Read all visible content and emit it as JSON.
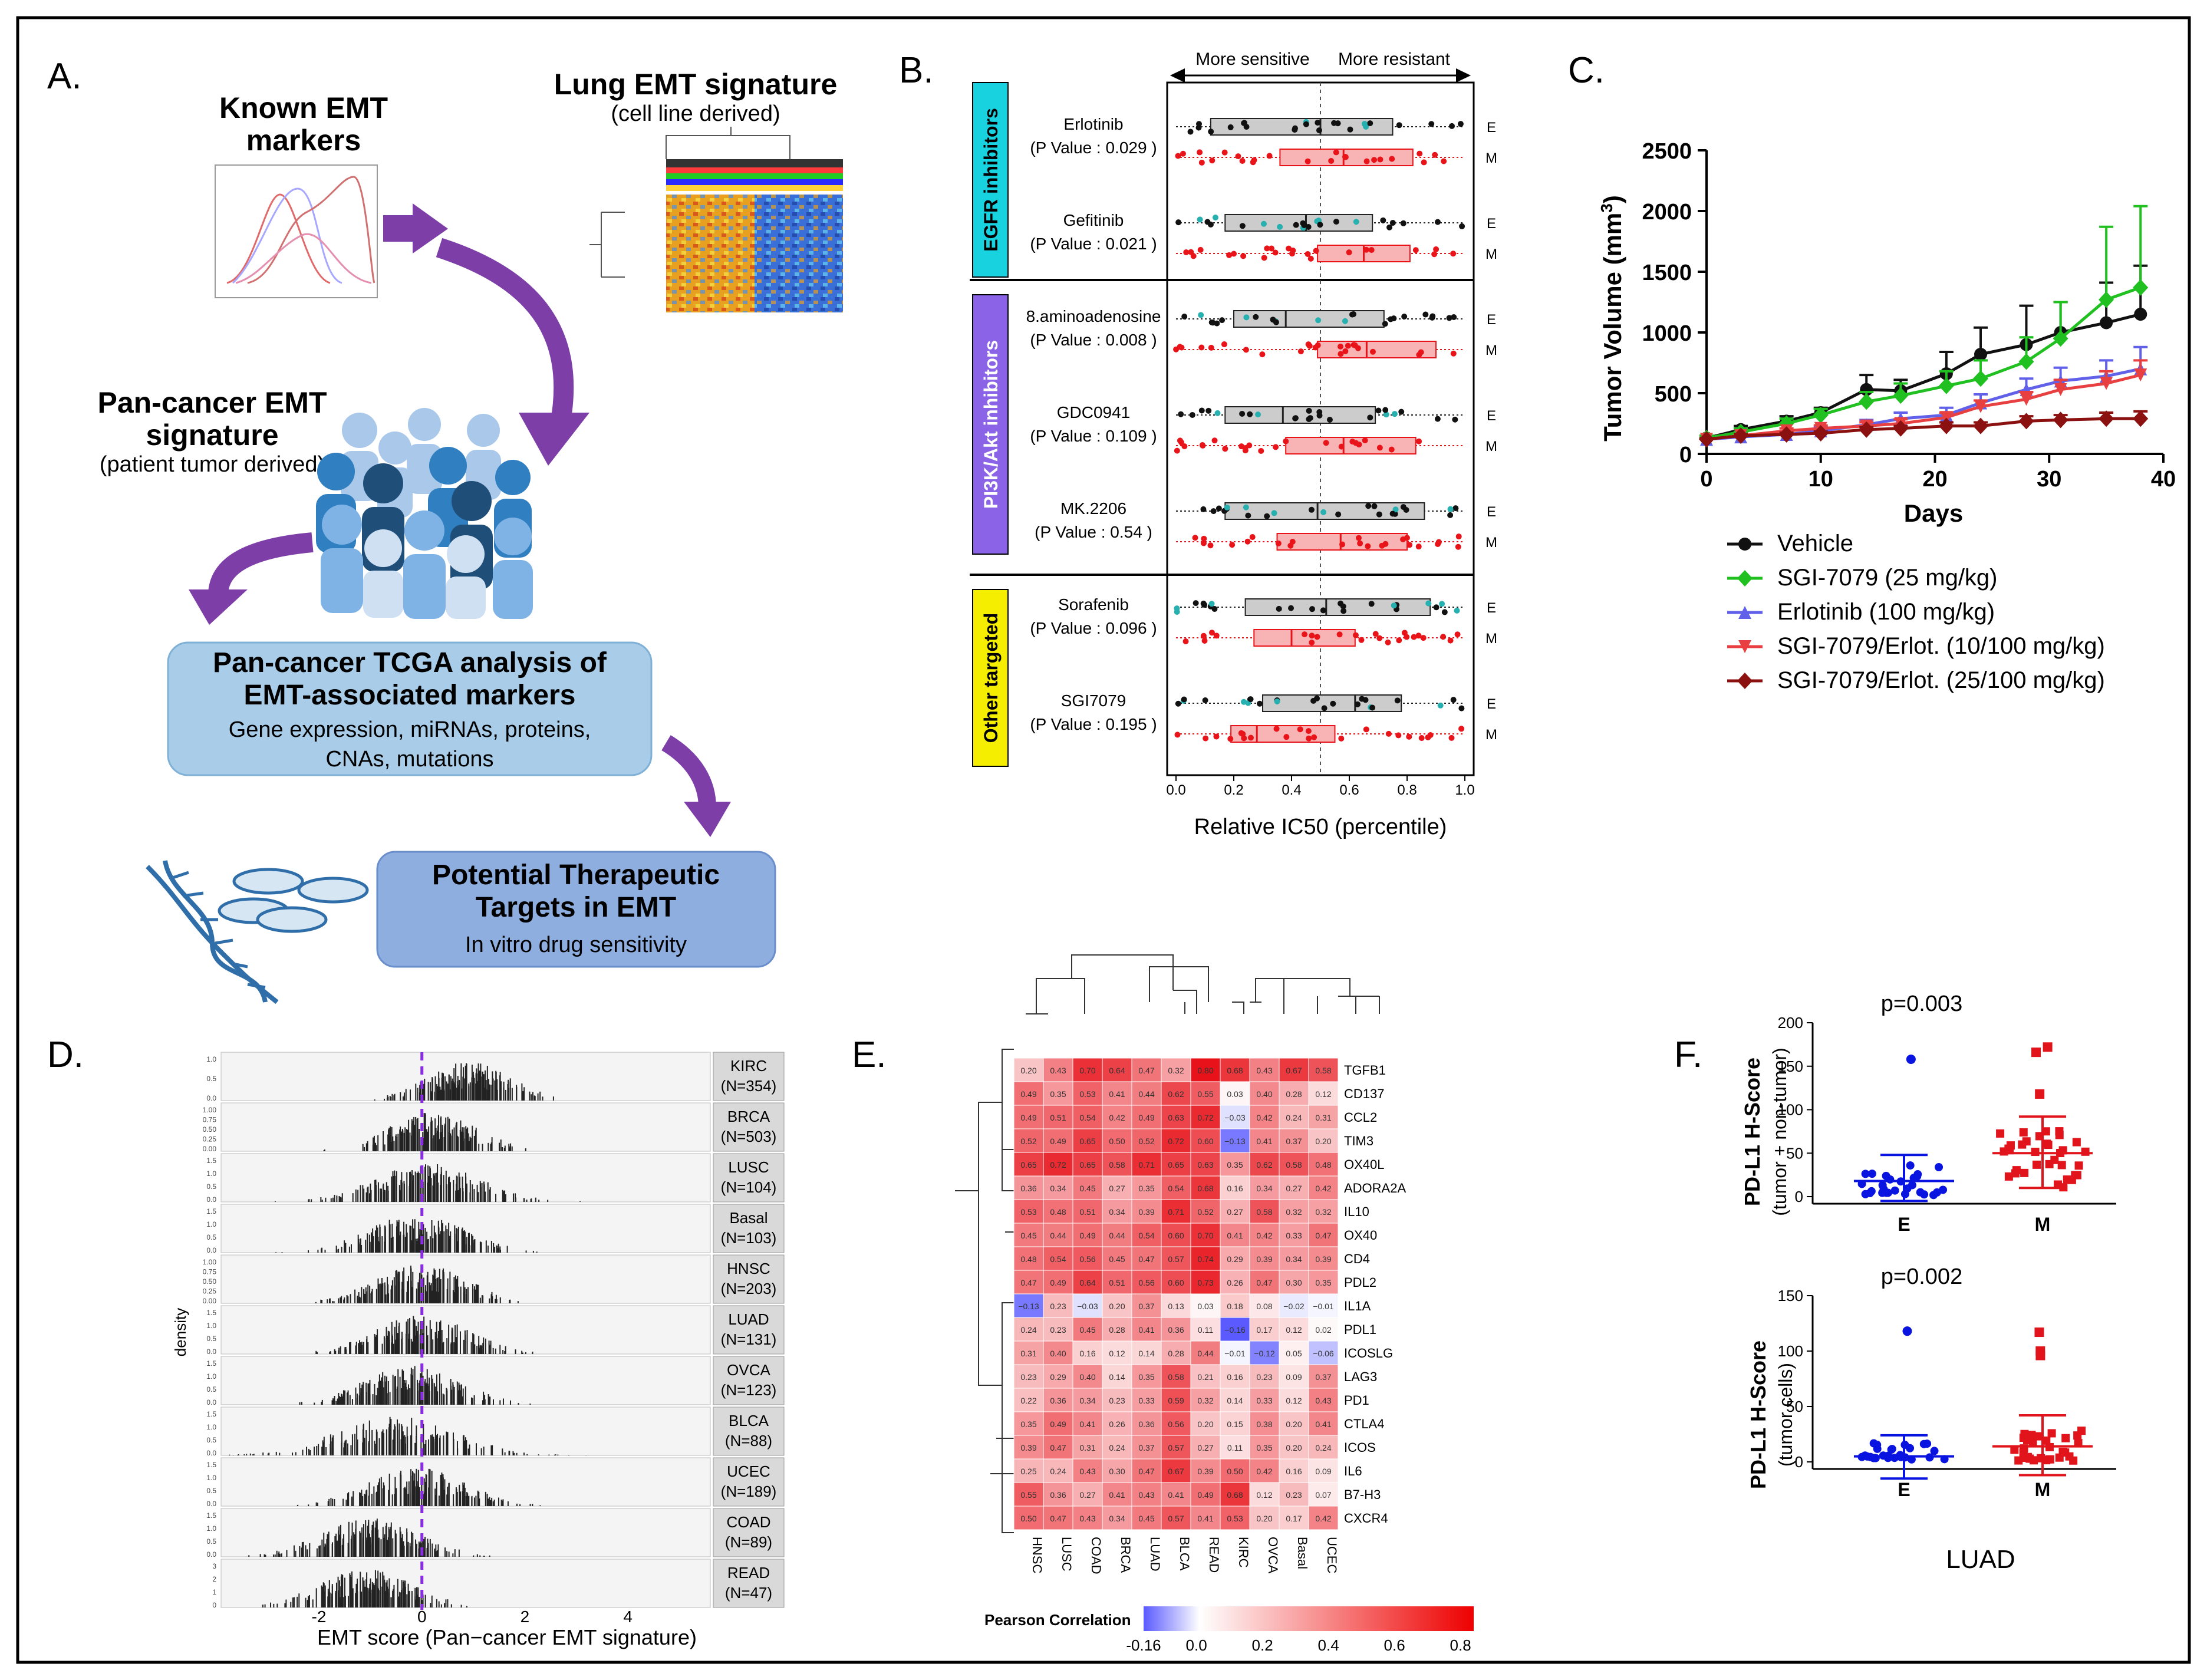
{
  "colors": {
    "accent_purple": "#7d3ea8",
    "egfr_box": "#18d2e0",
    "pi3k_box": "#8a63e6",
    "other_box": "#f5ee00",
    "epithelial": "#222222",
    "mesenchymal": "#e8141a",
    "teal_point": "#27b0b0",
    "heat_high": "#e8121a",
    "heat_low": "#5a5aff",
    "f_blue": "#0a14e0",
    "f_red": "#e0141a"
  },
  "panel_a": {
    "label": "A.",
    "known_title_1": "Known EMT",
    "known_title_2": "markers",
    "lung_title": "Lung EMT signature",
    "lung_sub": "(cell line derived)",
    "pan_title_1": "Pan-cancer EMT",
    "pan_title_2": "signature",
    "pan_sub": "(patient tumor derived)",
    "tcga_title_1": "Pan-cancer TCGA analysis of",
    "tcga_title_2": "EMT-associated markers",
    "tcga_sub_1": "Gene expression, miRNAs, proteins,",
    "tcga_sub_2": "CNAs, mutations",
    "thera_title_1": "Potential Therapeutic",
    "thera_title_2": "Targets in EMT",
    "thera_sub": "In vitro drug sensitivity"
  },
  "panel_b": {
    "label": "B.",
    "arrow_left": "More sensitive",
    "arrow_right": "More resistant",
    "xlabel": "Relative IC50 (percentile)",
    "ticks": [
      "0.0",
      "0.2",
      "0.4",
      "0.6",
      "0.8",
      "1.0"
    ],
    "group_labels": [
      "EGFR inhibitors",
      "PI3K/Akt inhibitors",
      "Other targeted"
    ],
    "drugs": [
      {
        "name": "Erlotinib",
        "p": "(P Value : 0.029 )",
        "e": [
          0.12,
          0.5,
          0.75
        ],
        "m": [
          0.36,
          0.58,
          0.82
        ]
      },
      {
        "name": "Gefitinib",
        "p": "(P Value : 0.021 )",
        "e": [
          0.17,
          0.45,
          0.68
        ],
        "m": [
          0.49,
          0.65,
          0.81
        ]
      },
      {
        "name": "8.aminoadenosine",
        "p": "(P Value : 0.008 )",
        "e": [
          0.2,
          0.38,
          0.72
        ],
        "m": [
          0.49,
          0.66,
          0.9
        ]
      },
      {
        "name": "GDC0941",
        "p": "(P Value : 0.109 )",
        "e": [
          0.17,
          0.37,
          0.69
        ],
        "m": [
          0.38,
          0.58,
          0.83
        ]
      },
      {
        "name": "MK.2206",
        "p": "(P Value : 0.54 )",
        "e": [
          0.17,
          0.49,
          0.86
        ],
        "m": [
          0.35,
          0.57,
          0.8
        ]
      },
      {
        "name": "Sorafenib",
        "p": "(P Value : 0.096 )",
        "e": [
          0.24,
          0.52,
          0.88
        ],
        "m": [
          0.27,
          0.4,
          0.62
        ]
      },
      {
        "name": "SGI7079",
        "p": "(P Value : 0.195 )",
        "e": [
          0.3,
          0.62,
          0.78
        ],
        "m": [
          0.19,
          0.28,
          0.55
        ]
      }
    ],
    "e_tag": "E",
    "m_tag": "M"
  },
  "panel_c": {
    "label": "C.",
    "ylabel": "Tumor Volume (mm",
    "ylabel_sup": "3",
    "ylabel_end": ")",
    "xlabel": "Days",
    "yticks": [
      "0",
      "500",
      "1000",
      "1500",
      "2000",
      "2500"
    ],
    "xticks": [
      "0",
      "10",
      "20",
      "30",
      "40"
    ],
    "x_values": [
      0,
      3,
      7,
      10,
      14,
      17,
      21,
      24,
      28,
      31,
      35,
      38
    ]
  },
  "chart_data": [
    {
      "type": "line",
      "title": "Tumor Volume",
      "xlabel": "Days",
      "ylabel": "Tumor Volume (mm3)",
      "xlim": [
        0,
        40
      ],
      "ylim": [
        0,
        2500
      ],
      "x": [
        0,
        3,
        7,
        10,
        14,
        17,
        21,
        24,
        28,
        31,
        35,
        38
      ],
      "series": [
        {
          "name": "Vehicle",
          "color": "#111111",
          "marker": "circle",
          "values": [
            130,
            200,
            270,
            340,
            530,
            520,
            660,
            820,
            900,
            1000,
            1080,
            1150
          ]
        },
        {
          "name": "SGI-7079 (25 mg/kg)",
          "color": "#20c020",
          "marker": "diamond",
          "values": [
            130,
            180,
            250,
            320,
            430,
            480,
            560,
            620,
            760,
            950,
            1270,
            1370
          ]
        },
        {
          "name": "Erlotinib (100 mg/kg)",
          "color": "#6060e8",
          "marker": "triangle-up",
          "values": [
            120,
            140,
            160,
            190,
            240,
            290,
            320,
            420,
            530,
            600,
            640,
            700
          ]
        },
        {
          "name": "SGI-7079/Erlot. (10/100 mg/kg)",
          "color": "#e84040",
          "marker": "triangle-down",
          "values": [
            120,
            150,
            190,
            210,
            230,
            250,
            300,
            390,
            450,
            530,
            580,
            650
          ]
        },
        {
          "name": "SGI-7079/Erlot. (25/100 mg/kg)",
          "color": "#8b1010",
          "marker": "diamond",
          "values": [
            120,
            150,
            160,
            170,
            200,
            210,
            230,
            230,
            270,
            280,
            290,
            290
          ]
        }
      ]
    },
    {
      "type": "heatmap",
      "title": "Pearson Correlation",
      "columns": [
        "HNSC",
        "LUSC",
        "COAD",
        "BRCA",
        "LUAD",
        "BLCA",
        "READ",
        "KIRC",
        "OVCA",
        "Basal",
        "UCEC"
      ],
      "rows": [
        "TGFB1",
        "CD137",
        "CCL2",
        "TIM3",
        "OX40L",
        "ADORA2A",
        "IL10",
        "OX40",
        "CD4",
        "PDL2",
        "IL1A",
        "PDL1",
        "ICOSLG",
        "LAG3",
        "PD1",
        "CTLA4",
        "ICOS",
        "IL6",
        "B7-H3",
        "CXCR4"
      ],
      "values": [
        [
          0.2,
          0.43,
          0.7,
          0.64,
          0.47,
          0.32,
          0.8,
          0.68,
          0.43,
          0.67,
          0.58
        ],
        [
          0.49,
          0.35,
          0.53,
          0.41,
          0.44,
          0.62,
          0.55,
          0.03,
          0.4,
          0.28,
          0.12
        ],
        [
          0.49,
          0.51,
          0.54,
          0.42,
          0.49,
          0.63,
          0.72,
          -0.03,
          0.42,
          0.24,
          0.31
        ],
        [
          0.52,
          0.49,
          0.65,
          0.5,
          0.52,
          0.72,
          0.6,
          -0.13,
          0.41,
          0.37,
          0.2
        ],
        [
          0.65,
          0.72,
          0.65,
          0.58,
          0.71,
          0.65,
          0.63,
          0.35,
          0.62,
          0.58,
          0.48
        ],
        [
          0.36,
          0.34,
          0.45,
          0.27,
          0.35,
          0.54,
          0.68,
          0.16,
          0.34,
          0.27,
          0.42
        ],
        [
          0.53,
          0.48,
          0.51,
          0.34,
          0.39,
          0.71,
          0.52,
          0.27,
          0.58,
          0.32,
          0.32
        ],
        [
          0.45,
          0.44,
          0.49,
          0.44,
          0.54,
          0.6,
          0.7,
          0.41,
          0.42,
          0.33,
          0.47
        ],
        [
          0.48,
          0.54,
          0.56,
          0.45,
          0.47,
          0.57,
          0.74,
          0.29,
          0.39,
          0.34,
          0.39
        ],
        [
          0.47,
          0.49,
          0.64,
          0.51,
          0.56,
          0.6,
          0.73,
          0.26,
          0.47,
          0.3,
          0.35
        ],
        [
          -0.13,
          0.23,
          -0.03,
          0.2,
          0.37,
          0.13,
          0.03,
          0.18,
          0.08,
          -0.02,
          -0.01
        ],
        [
          0.24,
          0.23,
          0.45,
          0.28,
          0.41,
          0.36,
          0.11,
          -0.16,
          0.17,
          0.12,
          0.02
        ],
        [
          0.31,
          0.4,
          0.16,
          0.12,
          0.14,
          0.28,
          0.44,
          -0.01,
          -0.12,
          0.05,
          -0.06
        ],
        [
          0.23,
          0.29,
          0.4,
          0.14,
          0.35,
          0.58,
          0.21,
          0.16,
          0.23,
          0.09,
          0.37
        ],
        [
          0.22,
          0.36,
          0.34,
          0.23,
          0.33,
          0.59,
          0.32,
          0.14,
          0.33,
          0.12,
          0.43
        ],
        [
          0.35,
          0.49,
          0.41,
          0.26,
          0.36,
          0.56,
          0.2,
          0.15,
          0.38,
          0.2,
          0.41
        ],
        [
          0.39,
          0.47,
          0.31,
          0.24,
          0.37,
          0.57,
          0.27,
          0.11,
          0.35,
          0.2,
          0.24
        ],
        [
          0.25,
          0.24,
          0.43,
          0.3,
          0.47,
          0.67,
          0.39,
          0.5,
          0.42,
          0.16,
          0.09
        ],
        [
          0.55,
          0.36,
          0.27,
          0.41,
          0.43,
          0.41,
          0.49,
          0.68,
          0.12,
          0.23,
          0.07
        ],
        [
          0.5,
          0.47,
          0.43,
          0.34,
          0.45,
          0.57,
          0.41,
          0.53,
          0.2,
          0.17,
          0.42
        ]
      ],
      "legend_ticks": [
        "-0.16",
        "0.0",
        "0.2",
        "0.4",
        "0.6",
        "0.8"
      ]
    },
    {
      "type": "scatter",
      "title": "PD-L1 H-Score (tumor + non-tumor)",
      "categories": [
        "E",
        "M"
      ],
      "ylim": [
        0,
        200
      ],
      "p_value": "p=0.003",
      "mean": [
        18,
        50
      ],
      "sd_upper": [
        48,
        92
      ],
      "sd_lower": [
        -5,
        10
      ]
    },
    {
      "type": "scatter",
      "title": "PD-L1 H-Score (tumor cells)",
      "categories": [
        "E",
        "M"
      ],
      "ylim": [
        0,
        150
      ],
      "p_value": "p=0.002",
      "mean": [
        5,
        14
      ],
      "sd_upper": [
        24,
        42
      ],
      "sd_lower": [
        -15,
        -12
      ]
    }
  ],
  "legend_c": [
    "Vehicle",
    "SGI-7079 (25 mg/kg)",
    "Erlotinib (100 mg/kg)",
    "SGI-7079/Erlot. (10/100 mg/kg)",
    "SGI-7079/Erlot. (25/100 mg/kg)"
  ],
  "panel_d": {
    "label": "D.",
    "xlabel": "EMT score (Pan−cancer EMT signature)",
    "ylabel": "density",
    "xticks": [
      "-2",
      "0",
      "2",
      "4"
    ],
    "cancers": [
      {
        "name": "KIRC",
        "n": "(N=354)",
        "yt": [
          "1.0",
          "0.5",
          "0.0"
        ]
      },
      {
        "name": "BRCA",
        "n": "(N=503)",
        "yt": [
          "1.00",
          "0.75",
          "0.50",
          "0.25",
          "0.00"
        ]
      },
      {
        "name": "LUSC",
        "n": "(N=104)",
        "yt": [
          "1.5",
          "1.0",
          "0.5",
          "0.0"
        ]
      },
      {
        "name": "Basal",
        "n": "(N=103)",
        "yt": [
          "1.5",
          "1.0",
          "0.5",
          "0.0"
        ]
      },
      {
        "name": "HNSC",
        "n": "(N=203)",
        "yt": [
          "1.00",
          "0.75",
          "0.50",
          "0.25",
          "0.00"
        ]
      },
      {
        "name": "LUAD",
        "n": "(N=131)",
        "yt": [
          "1.5",
          "1.0",
          "0.5",
          "0.0"
        ]
      },
      {
        "name": "OVCA",
        "n": "(N=123)",
        "yt": [
          "1.5",
          "1.0",
          "0.5",
          "0.0"
        ]
      },
      {
        "name": "BLCA",
        "n": "(N=88)",
        "yt": [
          "1.5",
          "1.0",
          "0.5",
          "0.0"
        ]
      },
      {
        "name": "UCEC",
        "n": "(N=189)",
        "yt": [
          "1.5",
          "1.0",
          "0.5",
          "0.0"
        ]
      },
      {
        "name": "COAD",
        "n": "(N=89)",
        "yt": [
          "1.5",
          "1.0",
          "0.5",
          "0.0"
        ]
      },
      {
        "name": "READ",
        "n": "(N=47)",
        "yt": [
          "3",
          "2",
          "1",
          "0"
        ]
      }
    ]
  },
  "panel_e": {
    "label": "E.",
    "legend_title": "Pearson Correlation"
  },
  "panel_f": {
    "label": "F.",
    "top_ylabel_1": "PD-L1 H-Score",
    "top_ylabel_2": "(tumor + non-tumor)",
    "top_yticks": [
      "0",
      "50",
      "100",
      "150",
      "200"
    ],
    "top_p": "p=0.003",
    "bot_ylabel_1": "PD-L1 H-Score",
    "bot_ylabel_2": "(tumor cells)",
    "bot_yticks": [
      "0",
      "50",
      "100",
      "150"
    ],
    "bot_p": "p=0.002",
    "cat_e": "E",
    "cat_m": "M",
    "footer": "LUAD"
  }
}
